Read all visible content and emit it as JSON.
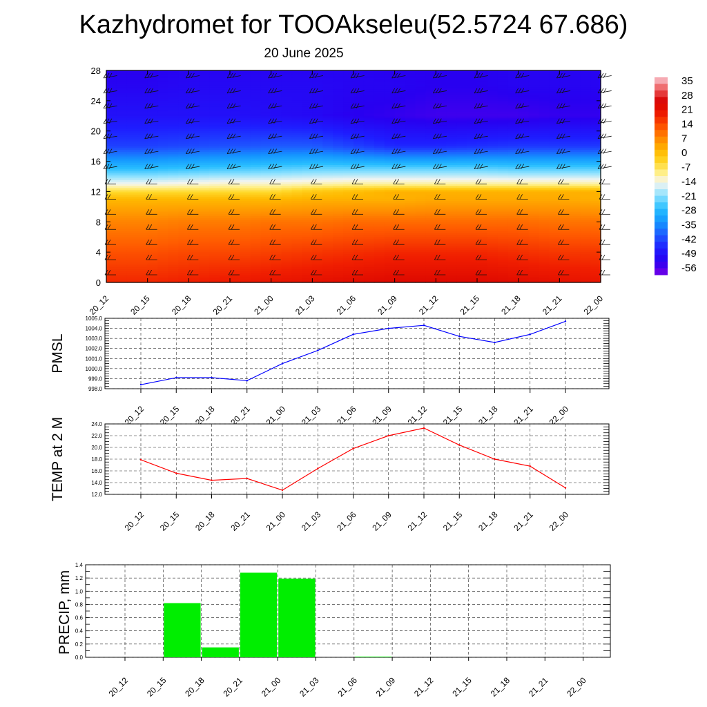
{
  "title": "Kazhydromet for TOOAkseleu(52.5724 67.686)",
  "subtitle": "20 June 2025",
  "time_labels": [
    "20_12",
    "20_15",
    "20_18",
    "20_21",
    "21_00",
    "21_03",
    "21_06",
    "21_09",
    "21_12",
    "21_15",
    "21_18",
    "21_21",
    "22_00"
  ],
  "colors": {
    "pmsl_line": "#0000ff",
    "temp_line": "#ff0000",
    "precip_bar": "#00ee00",
    "grid": "#000000"
  },
  "chart_data": [
    {
      "type": "heatmap",
      "panel": "cross-section",
      "x": [
        "20_12",
        "20_15",
        "20_18",
        "20_21",
        "21_00",
        "21_03",
        "21_06",
        "21_09",
        "21_12",
        "21_15",
        "21_18",
        "21_21",
        "22_00"
      ],
      "y_ticks": [
        0,
        4,
        8,
        12,
        16,
        20,
        24,
        28
      ],
      "ylim": [
        0,
        28
      ],
      "colorbar_labels": [
        "35",
        "28",
        "21",
        "14",
        "7",
        "0",
        "-7",
        "-14",
        "-21",
        "-28",
        "-35",
        "-42",
        "-49",
        "-56"
      ],
      "colorbar_range": [
        -63,
        42
      ],
      "temperature_profile": [
        {
          "level": 0,
          "values": [
            21,
            21,
            22,
            23,
            24,
            25,
            26,
            27,
            27,
            27,
            26,
            25,
            24
          ]
        },
        {
          "level": 4,
          "values": [
            16,
            16,
            17,
            17,
            18,
            19,
            20,
            21,
            21,
            21,
            20,
            19,
            19
          ]
        },
        {
          "level": 8,
          "values": [
            10,
            10,
            11,
            11,
            12,
            12,
            13,
            13,
            13,
            13,
            13,
            12,
            12
          ]
        },
        {
          "level": 11,
          "values": [
            3,
            3,
            3,
            3,
            3,
            4,
            4,
            4,
            5,
            5,
            5,
            5,
            4
          ]
        },
        {
          "level": 12,
          "values": [
            -4,
            -4,
            -4,
            -4,
            -4,
            0,
            2,
            4,
            4,
            4,
            4,
            4,
            4
          ]
        },
        {
          "level": 13,
          "values": [
            -14,
            -14,
            -13,
            -12,
            -12,
            -11,
            -10,
            -10,
            -10,
            -10,
            -10,
            -10,
            -10
          ]
        },
        {
          "level": 15,
          "values": [
            -28,
            -28,
            -27,
            -26,
            -25,
            -24,
            -24,
            -24,
            -24,
            -24,
            -25,
            -25,
            -25
          ]
        },
        {
          "level": 18,
          "values": [
            -45,
            -45,
            -44,
            -43,
            -42,
            -42,
            -45,
            -48,
            -48,
            -47,
            -46,
            -46,
            -46
          ]
        },
        {
          "level": 22,
          "values": [
            -52,
            -52,
            -52,
            -52,
            -53,
            -54,
            -56,
            -57,
            -58,
            -58,
            -58,
            -57,
            -57
          ]
        },
        {
          "level": 26,
          "values": [
            -55,
            -55,
            -54,
            -54,
            -54,
            -54,
            -55,
            -55,
            -56,
            -56,
            -55,
            -55,
            -55
          ]
        },
        {
          "level": 28,
          "values": [
            -56,
            -56,
            -55,
            -55,
            -55,
            -55,
            -55,
            -56,
            -56,
            -56,
            -55,
            -55,
            -55
          ]
        }
      ]
    },
    {
      "type": "line",
      "panel": "pmsl",
      "ylabel": "PMSL",
      "x": [
        "20_12",
        "20_15",
        "20_18",
        "20_21",
        "21_00",
        "21_03",
        "21_06",
        "21_09",
        "21_12",
        "21_15",
        "21_18",
        "21_21",
        "22_00"
      ],
      "series": [
        {
          "values": [
            998.4,
            999.1,
            999.1,
            998.8,
            1000.5,
            1001.8,
            1003.4,
            1004.0,
            1004.3,
            1003.2,
            1002.6,
            1003.4,
            1004.7
          ]
        }
      ],
      "ylim": [
        998.0,
        1005.0
      ],
      "y_ticks": [
        "998.0",
        "999.0",
        "1000.0",
        "1001.0",
        "1002.0",
        "1003.0",
        "1004.0",
        "1005.0"
      ]
    },
    {
      "type": "line",
      "panel": "temp",
      "ylabel": "TEMP at 2 M",
      "x": [
        "20_12",
        "20_15",
        "20_18",
        "20_21",
        "21_00",
        "21_03",
        "21_06",
        "21_09",
        "21_12",
        "21_15",
        "21_18",
        "21_21",
        "22_00"
      ],
      "series": [
        {
          "values": [
            17.9,
            15.6,
            14.4,
            14.7,
            12.7,
            16.4,
            19.8,
            22.0,
            23.3,
            20.4,
            18.0,
            16.8,
            13.1
          ]
        }
      ],
      "ylim": [
        12.0,
        24.0
      ],
      "y_ticks": [
        "12.0",
        "14.0",
        "16.0",
        "18.0",
        "20.0",
        "22.0",
        "24.0"
      ]
    },
    {
      "type": "bar",
      "panel": "precip",
      "ylabel": "PRECIP, mm",
      "categories": [
        "20_12",
        "20_15",
        "20_18",
        "20_21",
        "21_00",
        "21_03",
        "21_06",
        "21_09",
        "21_12",
        "21_15",
        "21_18",
        "21_21",
        "22_00"
      ],
      "values": [
        0,
        0.82,
        0.15,
        1.28,
        1.19,
        0,
        0.01,
        0,
        0,
        0,
        0,
        0,
        0
      ],
      "ylim": [
        0.0,
        1.4
      ],
      "y_ticks": [
        "0.0",
        "0.2",
        "0.4",
        "0.6",
        "0.8",
        "1.0",
        "1.2",
        "1.4"
      ]
    }
  ]
}
